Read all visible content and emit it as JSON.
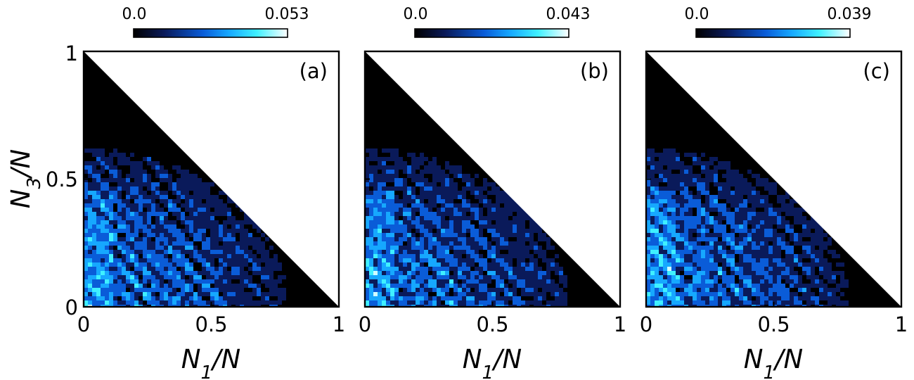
{
  "chart_data": [
    {
      "type": "heatmap",
      "panel_label": "(a)",
      "xlabel": "N1/N",
      "ylabel": "N3/N",
      "xlim": [
        0,
        1
      ],
      "ylim": [
        0,
        1
      ],
      "x_tick_labels": [
        "0",
        "0.5",
        "1"
      ],
      "y_tick_labels": [
        "0",
        "0.5",
        "1"
      ],
      "colorbar": {
        "min_label": "0.0",
        "max_label": "0.053",
        "min": 0.0,
        "max": 0.053
      },
      "domain": "N1/N + N3/N <= 1 (upper-right triangle blank)",
      "blue_region_max_N3": 0.62,
      "blue_region_max_N1": 0.8
    },
    {
      "type": "heatmap",
      "panel_label": "(b)",
      "xlabel": "N1/N",
      "ylabel": "",
      "xlim": [
        0,
        1
      ],
      "ylim": [
        0,
        1
      ],
      "x_tick_labels": [
        "0",
        "0.5",
        "1"
      ],
      "y_tick_labels": [],
      "colorbar": {
        "min_label": "0.0",
        "max_label": "0.043",
        "min": 0.0,
        "max": 0.043
      },
      "domain": "N1/N + N3/N <= 1 (upper-right triangle blank)",
      "blue_region_max_N3": 0.62,
      "blue_region_max_N1": 0.8
    },
    {
      "type": "heatmap",
      "panel_label": "(c)",
      "xlabel": "N1/N",
      "ylabel": "",
      "xlim": [
        0,
        1
      ],
      "ylim": [
        0,
        1
      ],
      "x_tick_labels": [
        "0",
        "0.5",
        "1"
      ],
      "y_tick_labels": [],
      "colorbar": {
        "min_label": "0.0",
        "max_label": "0.039",
        "min": 0.0,
        "max": 0.039
      },
      "domain": "N1/N + N3/N <= 1 (upper-right triangle blank)",
      "blue_region_max_N3": 0.62,
      "blue_region_max_N1": 0.8
    }
  ],
  "colors": {
    "colormap": [
      "#000000",
      "#0a1a5a",
      "#0a5cd8",
      "#16a8ff",
      "#3ff0ff",
      "#ffffff"
    ],
    "frame": "#000000",
    "background": "#ffffff"
  }
}
